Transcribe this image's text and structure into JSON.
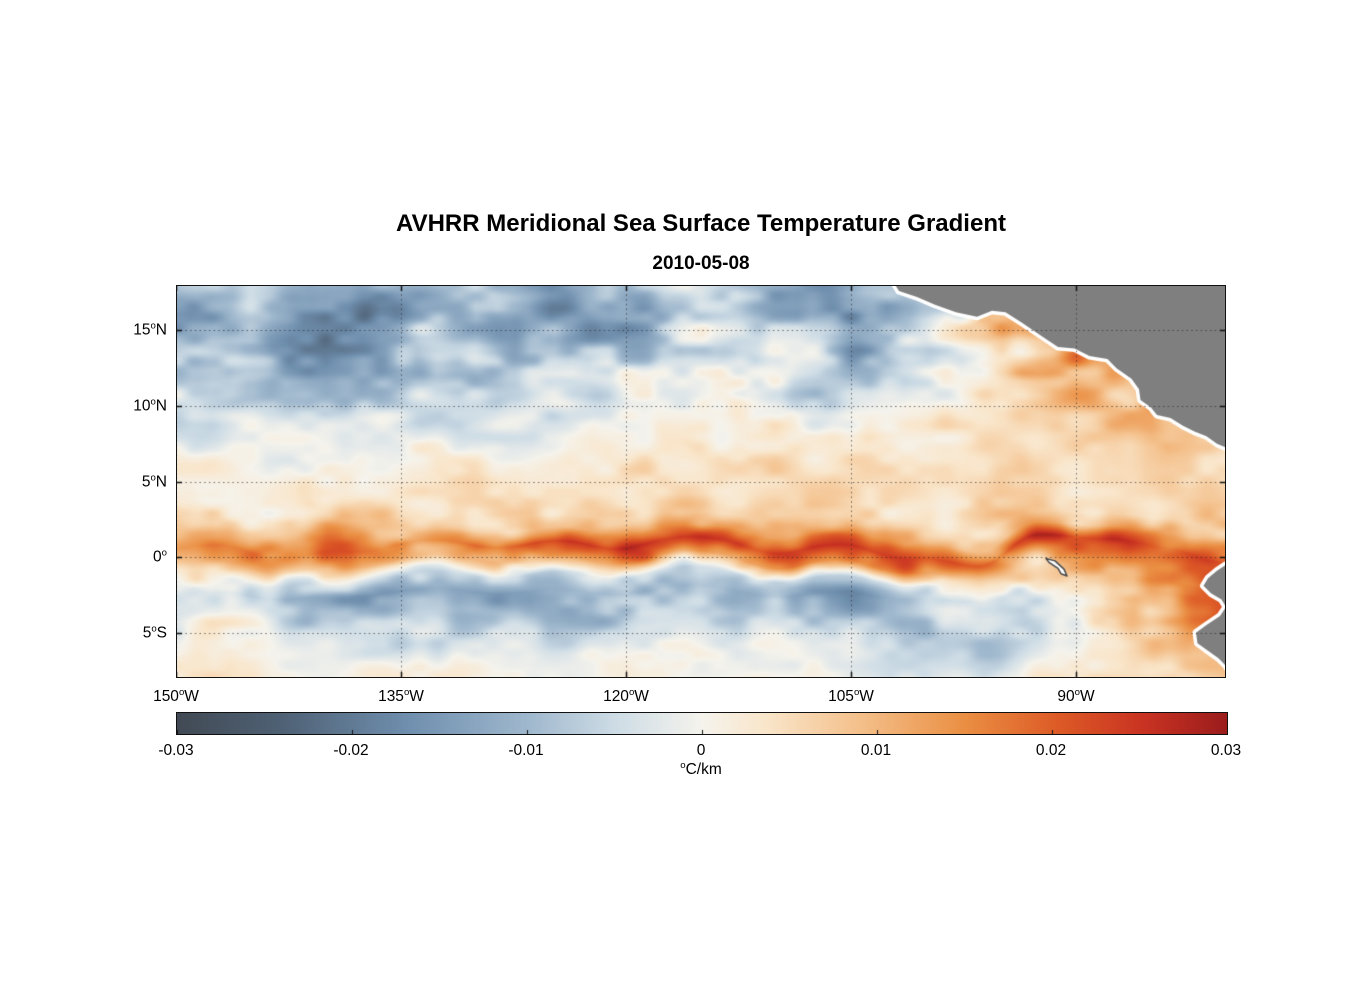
{
  "header": {
    "title": "AVHRR Meridional Sea Surface Temperature Gradient",
    "subtitle": "2010-05-08"
  },
  "chart_data": {
    "type": "heatmap",
    "title": "AVHRR Meridional Sea Surface Temperature Gradient",
    "subtitle": "2010-05-08",
    "units": "degC/km",
    "lon_range_degW": [
      150,
      80
    ],
    "lat_range_deg": [
      -8,
      18
    ],
    "lat_ticks": [
      {
        "value": 15,
        "deg": "15",
        "hem": "N"
      },
      {
        "value": 10,
        "deg": "10",
        "hem": "N"
      },
      {
        "value": 5,
        "deg": "5",
        "hem": "N"
      },
      {
        "value": 0,
        "deg": "0",
        "hem": ""
      },
      {
        "value": -5,
        "deg": "5",
        "hem": "S"
      }
    ],
    "lon_ticks": [
      {
        "value": 150,
        "deg": "150",
        "hem": "W"
      },
      {
        "value": 135,
        "deg": "135",
        "hem": "W"
      },
      {
        "value": 120,
        "deg": "120",
        "hem": "W"
      },
      {
        "value": 105,
        "deg": "105",
        "hem": "W"
      },
      {
        "value": 90,
        "deg": "90",
        "hem": "W"
      }
    ],
    "colorbar": {
      "min": -0.03,
      "max": 0.03,
      "tick_values": [
        -0.03,
        -0.02,
        -0.01,
        0,
        0.01,
        0.02,
        0.03
      ],
      "tick_labels": [
        "-0.03",
        "-0.02",
        "-0.01",
        "0",
        "0.01",
        "0.02",
        "0.03"
      ],
      "unit_sup": "o",
      "unit_text": "C/km"
    },
    "colormap": [
      {
        "t": 0.0,
        "c": "#414a54"
      },
      {
        "t": 0.1,
        "c": "#4f6175"
      },
      {
        "t": 0.22,
        "c": "#6f8fae"
      },
      {
        "t": 0.33,
        "c": "#9db6cc"
      },
      {
        "t": 0.42,
        "c": "#cfdde6"
      },
      {
        "t": 0.5,
        "c": "#f5f3ec"
      },
      {
        "t": 0.56,
        "c": "#f9e6cb"
      },
      {
        "t": 0.65,
        "c": "#f4c08b"
      },
      {
        "t": 0.75,
        "c": "#ea8f43"
      },
      {
        "t": 0.84,
        "c": "#dd5a26"
      },
      {
        "t": 0.92,
        "c": "#c93322"
      },
      {
        "t": 1.0,
        "c": "#9b1c1c"
      }
    ],
    "grid": {
      "lons": [
        150,
        145,
        140,
        135,
        130,
        125,
        120,
        115,
        110,
        105,
        100,
        95,
        90,
        85,
        80
      ],
      "lats": [
        18,
        16,
        14,
        12,
        10,
        8,
        6,
        4,
        2.5,
        1.5,
        0.5,
        -0.5,
        -1.5,
        -2.5,
        -4,
        -5,
        -6.5,
        -8
      ],
      "values": [
        [
          -0.01,
          -0.006,
          -0.013,
          -0.009,
          -0.004,
          -0.012,
          -0.007,
          -0.003,
          -0.009,
          -0.013,
          -0.006,
          0.002,
          0.003,
          0.002,
          0.001
        ],
        [
          -0.014,
          -0.009,
          -0.019,
          -0.015,
          -0.007,
          -0.017,
          -0.011,
          -0.005,
          -0.011,
          -0.017,
          -0.008,
          0.01,
          0.005,
          0.003,
          0.002
        ],
        [
          -0.009,
          -0.014,
          -0.018,
          -0.011,
          -0.005,
          -0.013,
          -0.009,
          -0.003,
          -0.007,
          -0.011,
          -0.003,
          0.006,
          0.012,
          0.005,
          0.003
        ],
        [
          -0.006,
          -0.009,
          -0.013,
          -0.007,
          -0.009,
          -0.007,
          -0.005,
          -0.002,
          -0.005,
          -0.009,
          -0.002,
          0.004,
          0.013,
          0.008,
          0.004
        ],
        [
          -0.004,
          -0.005,
          -0.007,
          -0.004,
          -0.005,
          -0.004,
          -0.002,
          0.0,
          -0.002,
          -0.004,
          0.002,
          0.004,
          0.009,
          0.011,
          0.006
        ],
        [
          -0.002,
          -0.002,
          -0.003,
          -0.002,
          -0.002,
          -0.001,
          0.001,
          0.002,
          0.003,
          0.002,
          0.003,
          0.004,
          0.006,
          0.009,
          0.007
        ],
        [
          0.001,
          0.0,
          0.001,
          0.002,
          0.002,
          0.003,
          0.003,
          0.004,
          0.005,
          0.004,
          0.003,
          0.004,
          0.005,
          0.006,
          0.006
        ],
        [
          0.002,
          0.002,
          0.003,
          0.003,
          0.004,
          0.004,
          0.004,
          0.005,
          0.006,
          0.005,
          0.004,
          0.005,
          0.005,
          0.005,
          0.006
        ],
        [
          0.004,
          0.005,
          0.009,
          0.006,
          0.005,
          0.006,
          0.006,
          0.006,
          0.007,
          0.007,
          0.006,
          0.007,
          0.006,
          0.006,
          0.009
        ],
        [
          0.008,
          0.009,
          0.017,
          0.01,
          0.01,
          0.013,
          0.012,
          0.01,
          0.011,
          0.012,
          0.01,
          0.012,
          0.011,
          0.013,
          0.015
        ],
        [
          0.011,
          0.013,
          0.018,
          0.014,
          0.021,
          0.027,
          0.024,
          0.02,
          0.023,
          0.024,
          0.019,
          0.024,
          0.027,
          0.021,
          0.024
        ],
        [
          0.006,
          0.008,
          0.01,
          0.008,
          0.012,
          0.014,
          0.012,
          0.014,
          0.016,
          0.014,
          0.011,
          0.014,
          0.02,
          0.017,
          0.021
        ],
        [
          0.0,
          -0.002,
          -0.004,
          -0.006,
          -0.008,
          -0.008,
          -0.006,
          -0.004,
          -0.006,
          -0.008,
          -0.004,
          0.004,
          0.01,
          0.013,
          0.017
        ],
        [
          -0.004,
          -0.008,
          -0.012,
          -0.014,
          -0.016,
          -0.014,
          -0.012,
          -0.01,
          -0.012,
          -0.014,
          -0.01,
          -0.004,
          0.004,
          0.014,
          0.021
        ],
        [
          -0.002,
          -0.004,
          -0.008,
          -0.01,
          -0.012,
          -0.01,
          -0.008,
          -0.006,
          -0.008,
          -0.01,
          -0.008,
          -0.004,
          0.002,
          0.01,
          0.022
        ],
        [
          0.0,
          -0.002,
          -0.004,
          -0.006,
          -0.006,
          -0.006,
          -0.004,
          -0.004,
          -0.004,
          -0.006,
          -0.01,
          -0.006,
          0.0,
          0.008,
          0.018
        ],
        [
          0.002,
          0.0,
          -0.002,
          -0.002,
          -0.002,
          -0.002,
          0.0,
          0.0,
          -0.002,
          -0.004,
          -0.008,
          -0.006,
          0.002,
          0.006,
          0.012
        ],
        [
          0.002,
          0.002,
          0.0,
          0.002,
          0.0,
          0.0,
          0.002,
          0.002,
          0.0,
          -0.002,
          -0.004,
          -0.002,
          0.004,
          0.006,
          0.008
        ]
      ]
    },
    "noise": {
      "weights": [
        0.62,
        0.38
      ],
      "amp_base": 0.0038,
      "amp_north": 0.0062,
      "amp_south": 0.0042,
      "amp_eq": 0.004
    },
    "land_color": "#7f7f7f",
    "coast_halo": "#ffffff",
    "land_polygons": {
      "central_america": [
        [
          102.3,
          18.4
        ],
        [
          101.8,
          17.6
        ],
        [
          100.6,
          17.2
        ],
        [
          99.4,
          16.7
        ],
        [
          98.0,
          16.2
        ],
        [
          96.6,
          15.9
        ],
        [
          95.6,
          16.3
        ],
        [
          94.7,
          16.2
        ],
        [
          93.6,
          15.5
        ],
        [
          92.4,
          14.7
        ],
        [
          91.2,
          13.9
        ],
        [
          90.1,
          13.8
        ],
        [
          89.1,
          13.3
        ],
        [
          87.9,
          13.1
        ],
        [
          87.3,
          12.5
        ],
        [
          86.3,
          11.8
        ],
        [
          85.8,
          11.1
        ],
        [
          85.7,
          10.4
        ],
        [
          85.0,
          9.9
        ],
        [
          84.6,
          9.4
        ],
        [
          83.7,
          9.2
        ],
        [
          82.9,
          8.7
        ],
        [
          82.1,
          8.3
        ],
        [
          81.3,
          8.0
        ],
        [
          80.6,
          7.5
        ],
        [
          79.9,
          7.2
        ],
        [
          79.2,
          7.5
        ],
        [
          78.4,
          7.8
        ],
        [
          77.5,
          7.3
        ],
        [
          77.5,
          18.4
        ]
      ],
      "south_america": [
        [
          80.0,
          -0.5
        ],
        [
          80.6,
          -0.9
        ],
        [
          81.2,
          -1.4
        ],
        [
          81.5,
          -1.9
        ],
        [
          81.0,
          -2.4
        ],
        [
          80.3,
          -2.8
        ],
        [
          80.0,
          -3.3
        ],
        [
          80.4,
          -3.9
        ],
        [
          81.3,
          -4.5
        ],
        [
          82.0,
          -5.0
        ],
        [
          81.9,
          -5.7
        ],
        [
          81.2,
          -6.2
        ],
        [
          80.5,
          -6.7
        ],
        [
          80.0,
          -7.2
        ],
        [
          79.6,
          -7.8
        ],
        [
          79.4,
          -8.4
        ],
        [
          77.5,
          -8.4
        ],
        [
          77.5,
          -0.2
        ]
      ],
      "galapagos": [
        [
          92.0,
          -0.1
        ],
        [
          91.4,
          -0.25
        ],
        [
          90.8,
          -0.8
        ],
        [
          90.6,
          -1.25
        ],
        [
          91.0,
          -1.1
        ],
        [
          91.2,
          -0.75
        ],
        [
          91.8,
          -0.35
        ]
      ]
    }
  }
}
